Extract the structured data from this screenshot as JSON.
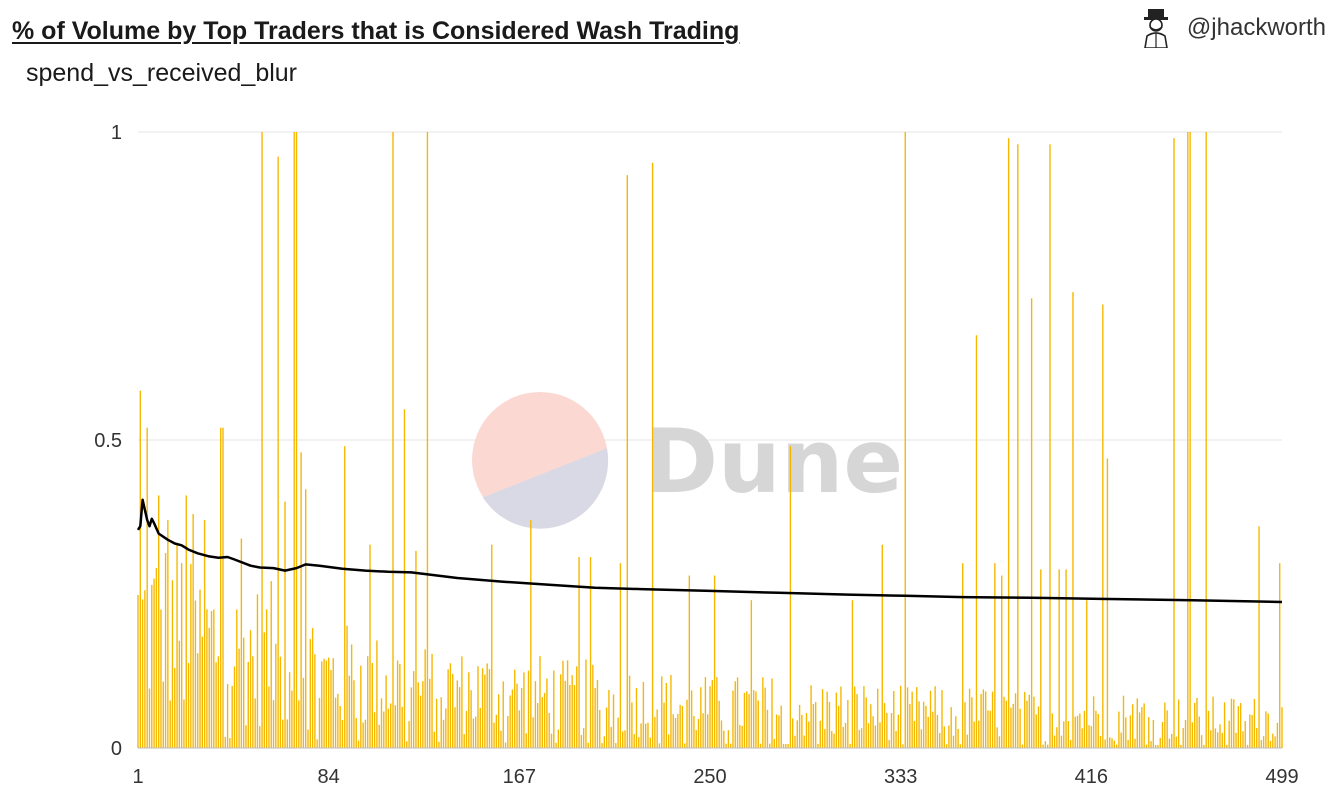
{
  "header": {
    "title": "% of Volume by Top Traders that is Considered Wash Trading",
    "subtitle": "spend_vs_received_blur",
    "author": "@jhackworth"
  },
  "watermark": {
    "text": "Dune"
  },
  "colors": {
    "bar": "#f5b700",
    "line": "#000000",
    "grid": "#e6e6e6",
    "axis": "#bbbbbb"
  },
  "chart_data": {
    "type": "bar",
    "title": "% of Volume by Top Traders that is Considered Wash Trading",
    "x_range": [
      1,
      499
    ],
    "ylim": [
      0,
      1
    ],
    "x_ticks": [
      "1",
      "84",
      "167",
      "250",
      "333",
      "416",
      "499"
    ],
    "y_ticks": [
      "0",
      "0.5",
      "1"
    ],
    "grid": true,
    "series": [
      {
        "type": "bar",
        "note": "499 bars; baseline values below are a typical value per 20-bar segment, spikes are explicit (rank, value) pairs",
        "baseline_by_segment": [
          0.21,
          0.18,
          0.16,
          0.14,
          0.12,
          0.11,
          0.1,
          0.095,
          0.09,
          0.085,
          0.08,
          0.075,
          0.07,
          0.07,
          0.065,
          0.065,
          0.06,
          0.06,
          0.06,
          0.055,
          0.055,
          0.055,
          0.05,
          0.05,
          0.05
        ],
        "spikes": [
          [
            2,
            0.58
          ],
          [
            5,
            0.52
          ],
          [
            10,
            0.41
          ],
          [
            14,
            0.37
          ],
          [
            22,
            0.41
          ],
          [
            25,
            0.38
          ],
          [
            30,
            0.37
          ],
          [
            37,
            0.52
          ],
          [
            38,
            0.52
          ],
          [
            46,
            0.34
          ],
          [
            55,
            1.0
          ],
          [
            62,
            0.96
          ],
          [
            65,
            0.4
          ],
          [
            69,
            1.0
          ],
          [
            70,
            1.0
          ],
          [
            72,
            0.48
          ],
          [
            74,
            0.42
          ],
          [
            91,
            0.49
          ],
          [
            102,
            0.33
          ],
          [
            112,
            1.0
          ],
          [
            117,
            0.55
          ],
          [
            122,
            0.32
          ],
          [
            127,
            1.0
          ],
          [
            155,
            0.33
          ],
          [
            172,
            0.37
          ],
          [
            193,
            0.31
          ],
          [
            198,
            0.31
          ],
          [
            211,
            0.3
          ],
          [
            214,
            0.93
          ],
          [
            225,
            0.95
          ],
          [
            241,
            0.28
          ],
          [
            252,
            0.28
          ],
          [
            268,
            0.24
          ],
          [
            285,
            0.49
          ],
          [
            312,
            0.24
          ],
          [
            325,
            0.33
          ],
          [
            335,
            1.0
          ],
          [
            360,
            0.3
          ],
          [
            366,
            0.67
          ],
          [
            374,
            0.3
          ],
          [
            377,
            0.28
          ],
          [
            380,
            0.99
          ],
          [
            384,
            0.98
          ],
          [
            390,
            0.73
          ],
          [
            394,
            0.29
          ],
          [
            398,
            0.98
          ],
          [
            402,
            0.29
          ],
          [
            405,
            0.29
          ],
          [
            408,
            0.74
          ],
          [
            414,
            0.24
          ],
          [
            421,
            0.72
          ],
          [
            423,
            0.47
          ],
          [
            452,
            0.99
          ],
          [
            458,
            1.0
          ],
          [
            459,
            1.0
          ],
          [
            466,
            1.0
          ],
          [
            489,
            0.36
          ],
          [
            498,
            0.3
          ]
        ]
      },
      {
        "type": "line",
        "points": [
          [
            1,
            0.354
          ],
          [
            2,
            0.36
          ],
          [
            3,
            0.403
          ],
          [
            5,
            0.37
          ],
          [
            6,
            0.36
          ],
          [
            7,
            0.372
          ],
          [
            8,
            0.365
          ],
          [
            10,
            0.348
          ],
          [
            14,
            0.338
          ],
          [
            17,
            0.332
          ],
          [
            20,
            0.329
          ],
          [
            23,
            0.322
          ],
          [
            27,
            0.316
          ],
          [
            32,
            0.311
          ],
          [
            36,
            0.309
          ],
          [
            40,
            0.31
          ],
          [
            43,
            0.306
          ],
          [
            50,
            0.296
          ],
          [
            54,
            0.293
          ],
          [
            60,
            0.292
          ],
          [
            65,
            0.288
          ],
          [
            70,
            0.292
          ],
          [
            74,
            0.298
          ],
          [
            80,
            0.296
          ],
          [
            90,
            0.291
          ],
          [
            100,
            0.288
          ],
          [
            110,
            0.286
          ],
          [
            120,
            0.285
          ],
          [
            140,
            0.276
          ],
          [
            160,
            0.27
          ],
          [
            180,
            0.265
          ],
          [
            200,
            0.26
          ],
          [
            220,
            0.258
          ],
          [
            250,
            0.255
          ],
          [
            280,
            0.252
          ],
          [
            310,
            0.249
          ],
          [
            335,
            0.247
          ],
          [
            360,
            0.245
          ],
          [
            390,
            0.244
          ],
          [
            420,
            0.242
          ],
          [
            460,
            0.24
          ],
          [
            499,
            0.237
          ]
        ]
      }
    ]
  }
}
